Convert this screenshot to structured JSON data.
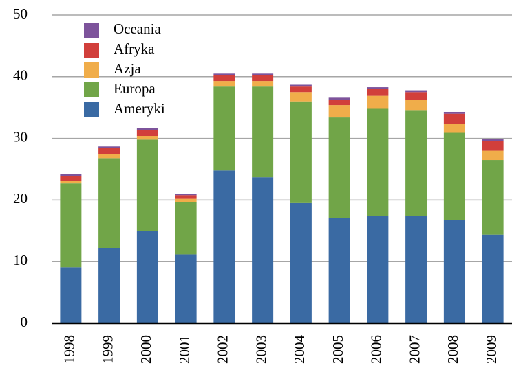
{
  "chart_data": {
    "type": "stacked_bar",
    "categories": [
      "1998",
      "1999",
      "2000",
      "2001",
      "2002",
      "2003",
      "2004",
      "2005",
      "2006",
      "2007",
      "2008",
      "2009"
    ],
    "series": [
      {
        "name": "Ameryki",
        "color": "#3a6aa3",
        "values": [
          9.1,
          12.2,
          15.0,
          11.2,
          24.8,
          23.7,
          19.5,
          17.1,
          17.4,
          17.4,
          16.8,
          14.4
        ]
      },
      {
        "name": "Europa",
        "color": "#71a548",
        "values": [
          13.6,
          14.6,
          14.8,
          8.5,
          13.6,
          14.7,
          16.5,
          16.3,
          17.4,
          17.2,
          14.1,
          12.1
        ]
      },
      {
        "name": "Azja",
        "color": "#f0ad4a",
        "values": [
          0.4,
          0.6,
          0.6,
          0.5,
          0.9,
          0.9,
          1.5,
          2.0,
          2.1,
          1.7,
          1.5,
          1.5
        ]
      },
      {
        "name": "Afryka",
        "color": "#d13f3b",
        "values": [
          0.8,
          1.0,
          1.0,
          0.6,
          0.9,
          0.9,
          0.9,
          0.9,
          1.1,
          1.2,
          1.6,
          1.6
        ]
      },
      {
        "name": "Oceania",
        "color": "#7d539b",
        "values": [
          0.3,
          0.3,
          0.3,
          0.2,
          0.3,
          0.3,
          0.3,
          0.3,
          0.3,
          0.3,
          0.3,
          0.3
        ]
      }
    ],
    "ylim": [
      0,
      50
    ],
    "yticks": [
      0,
      10,
      20,
      30,
      40,
      50
    ],
    "grid": true,
    "legend": "upper left"
  }
}
